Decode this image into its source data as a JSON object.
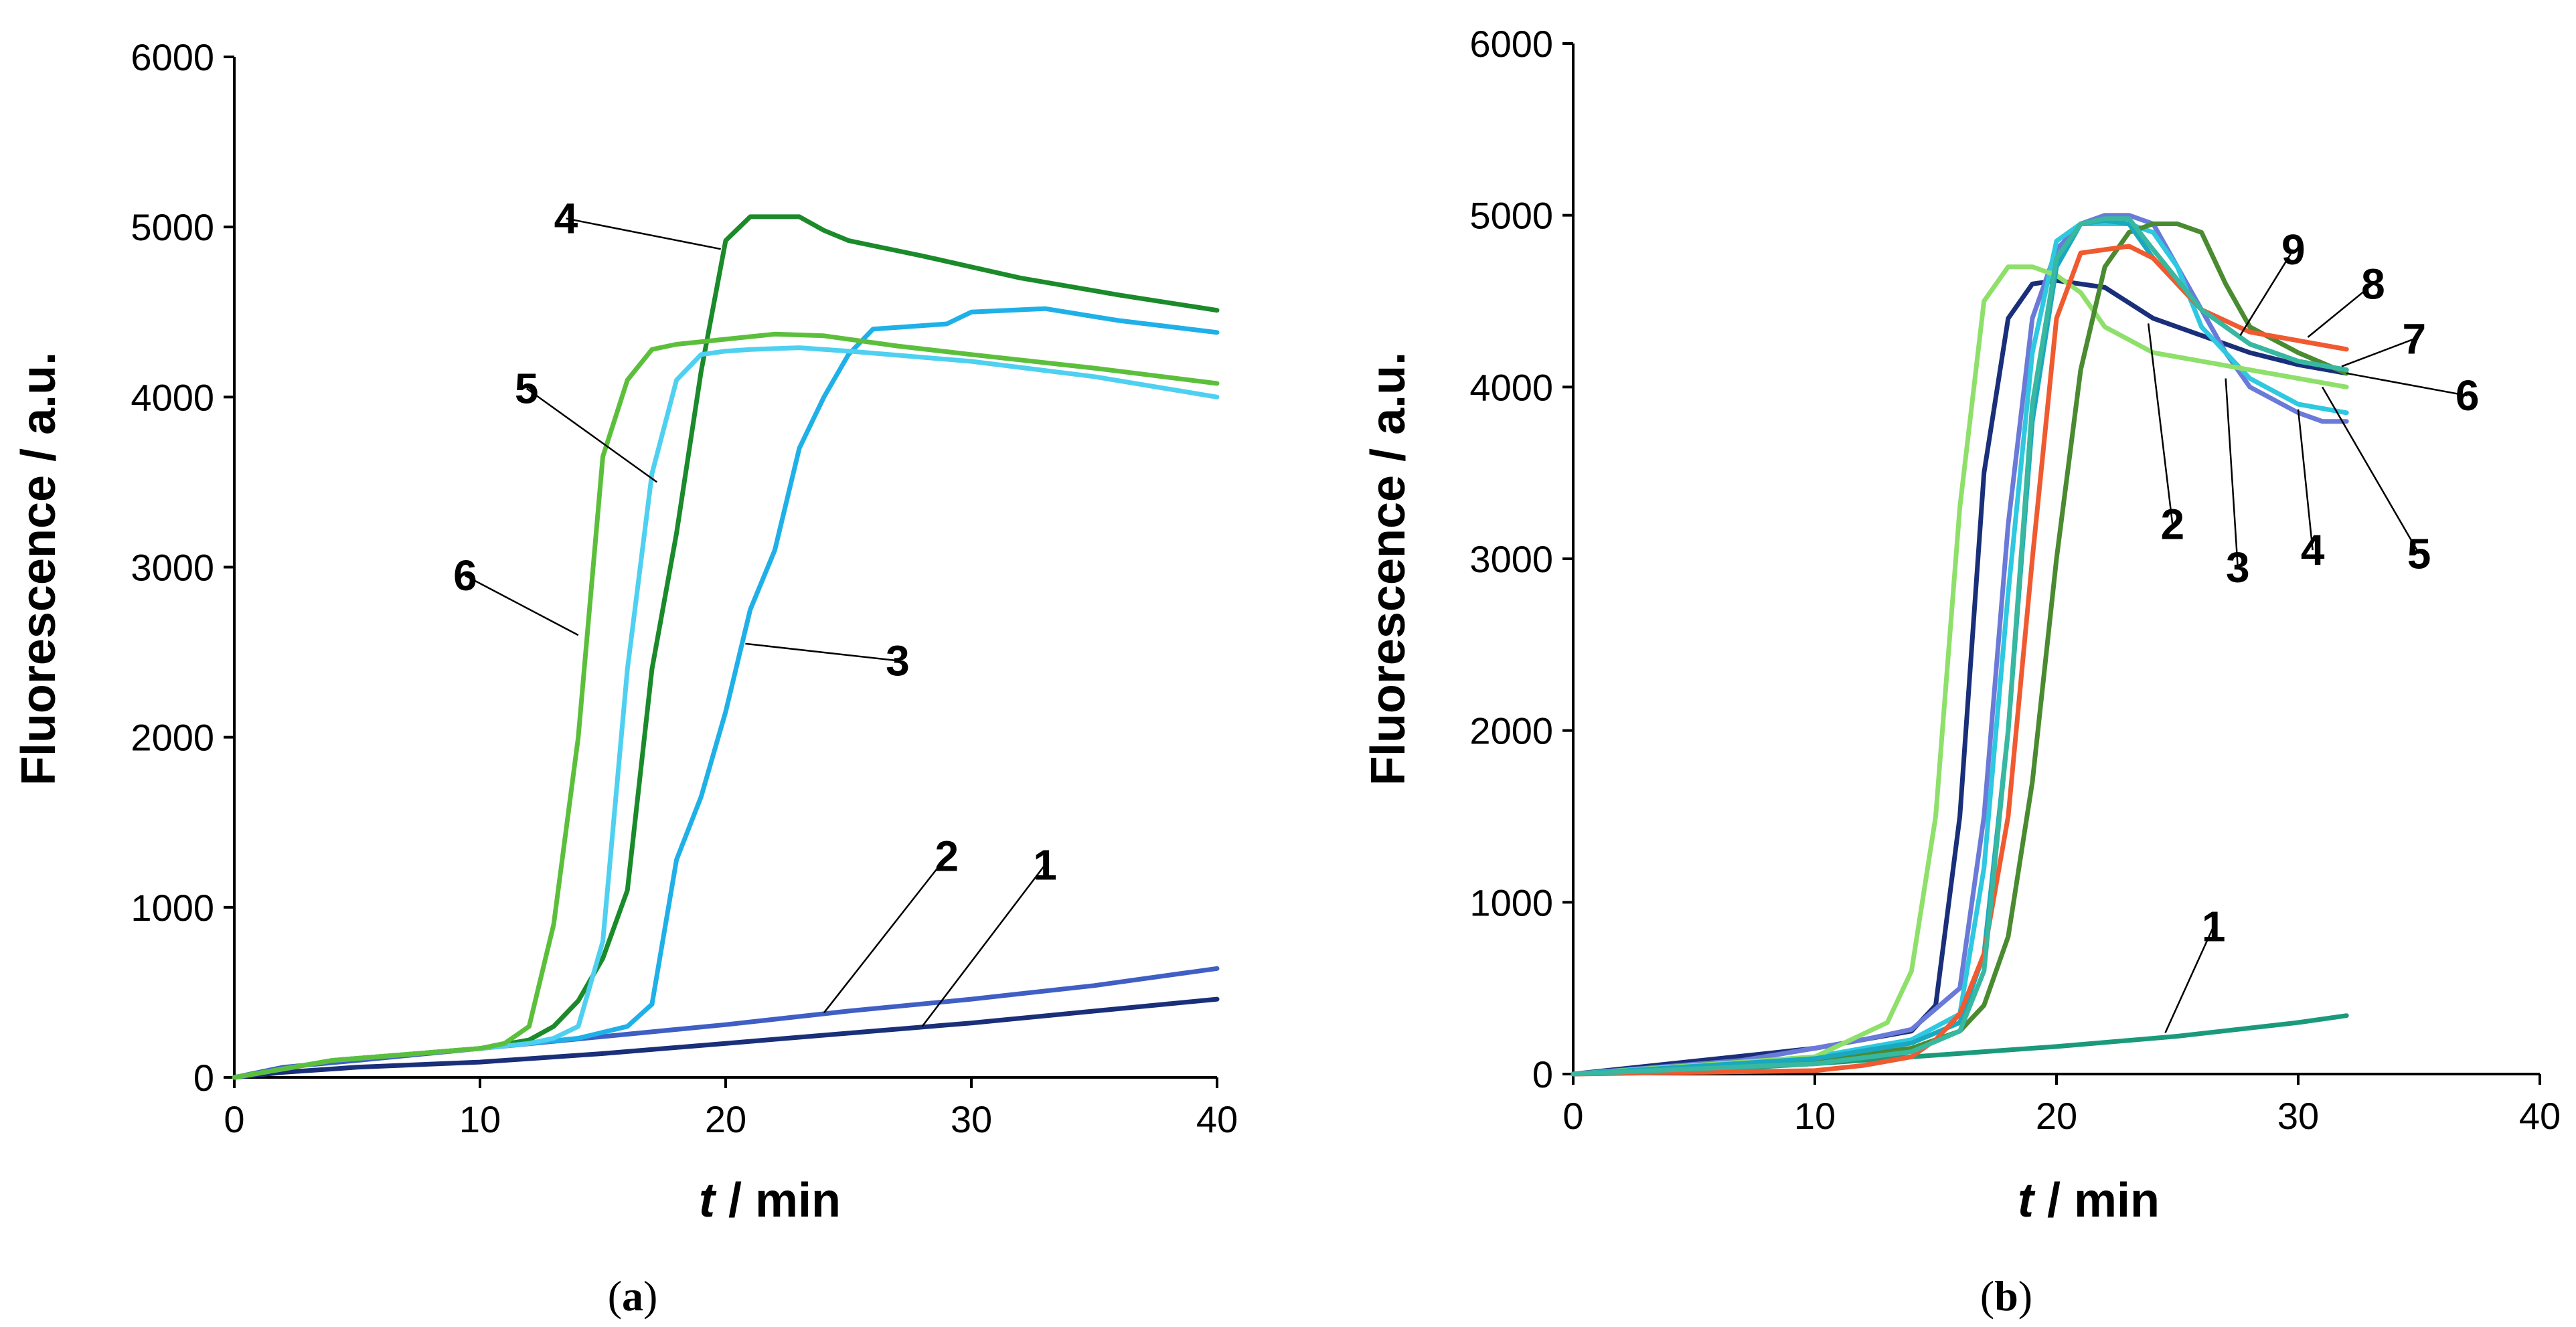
{
  "chart_data": [
    {
      "panel": "a",
      "type": "line",
      "title": "",
      "xlabel_italic": "t",
      "xlabel_rest": " / min",
      "ylabel": "Fluorescence / a.u.",
      "xlim": [
        0,
        40
      ],
      "ylim": [
        0,
        6000
      ],
      "xticks": [
        "0",
        "10",
        "20",
        "30",
        "40"
      ],
      "yticks": [
        "0",
        "1000",
        "2000",
        "3000",
        "4000",
        "5000",
        "6000"
      ],
      "grid": false,
      "panel_label_open": "(",
      "panel_label_letter": "a",
      "panel_label_close": ")",
      "series": [
        {
          "name": "1",
          "color": "#1a2f7a",
          "x": [
            0,
            2,
            5,
            10,
            15,
            20,
            25,
            30,
            35,
            40
          ],
          "y": [
            0,
            30,
            60,
            90,
            140,
            200,
            260,
            320,
            390,
            460
          ]
        },
        {
          "name": "2",
          "color": "#3f5fc4",
          "x": [
            0,
            2,
            5,
            10,
            15,
            20,
            25,
            30,
            35,
            40
          ],
          "y": [
            0,
            60,
            100,
            170,
            240,
            310,
            390,
            460,
            540,
            640
          ]
        },
        {
          "name": "3",
          "color": "#1fb0e8",
          "x": [
            0,
            4,
            10,
            14,
            16,
            17,
            18,
            19,
            20,
            21,
            22,
            23,
            24,
            25,
            26,
            28,
            29,
            30,
            33,
            36,
            40
          ],
          "y": [
            0,
            100,
            170,
            230,
            300,
            430,
            1280,
            1650,
            2150,
            2750,
            3100,
            3700,
            4000,
            4250,
            4400,
            4420,
            4430,
            4500,
            4520,
            4450,
            4380
          ]
        },
        {
          "name": "4",
          "color": "#1a8a2a",
          "x": [
            0,
            4,
            10,
            12,
            13,
            14,
            15,
            16,
            17,
            18,
            19,
            20,
            21,
            23,
            24,
            25,
            28,
            32,
            36,
            40
          ],
          "y": [
            0,
            100,
            170,
            220,
            300,
            450,
            700,
            1100,
            2400,
            3200,
            4150,
            4920,
            5060,
            5060,
            4980,
            4920,
            4830,
            4700,
            4600,
            4510
          ]
        },
        {
          "name": "5",
          "color": "#4fd0f0",
          "x": [
            0,
            4,
            10,
            12,
            13,
            14,
            15,
            16,
            17,
            18,
            19,
            20,
            21,
            23,
            25,
            30,
            35,
            40
          ],
          "y": [
            0,
            100,
            170,
            200,
            230,
            300,
            800,
            2400,
            3550,
            4100,
            4250,
            4270,
            4280,
            4290,
            4270,
            4210,
            4120,
            4000
          ]
        },
        {
          "name": "6",
          "color": "#5cbf3c",
          "x": [
            0,
            4,
            10,
            11,
            12,
            13,
            14,
            15,
            16,
            17,
            18,
            20,
            22,
            24,
            27,
            30,
            35,
            40
          ],
          "y": [
            0,
            100,
            170,
            200,
            300,
            900,
            2000,
            3650,
            4100,
            4280,
            4310,
            4340,
            4370,
            4360,
            4300,
            4250,
            4170,
            4080
          ]
        }
      ],
      "annotations": [
        {
          "label": "1",
          "text_x": 33,
          "text_y": 1250,
          "point_x": 28,
          "point_y": 300
        },
        {
          "label": "2",
          "text_x": 29,
          "text_y": 1300,
          "point_x": 24,
          "point_y": 380
        },
        {
          "label": "3",
          "text_x": 27,
          "text_y": 2450,
          "point_x": 20.8,
          "point_y": 2550
        },
        {
          "label": "4",
          "text_x": 13.5,
          "text_y": 5050,
          "point_x": 19.8,
          "point_y": 4870
        },
        {
          "label": "5",
          "text_x": 11.9,
          "text_y": 4050,
          "point_x": 17.2,
          "point_y": 3500
        },
        {
          "label": "6",
          "text_x": 9.4,
          "text_y": 2950,
          "point_x": 14.0,
          "point_y": 2600
        }
      ]
    },
    {
      "panel": "b",
      "type": "line",
      "title": "",
      "xlabel_italic": "t",
      "xlabel_rest": " / min",
      "ylabel": "Fluorescence / a.u.",
      "xlim": [
        0,
        40
      ],
      "ylim": [
        0,
        6000
      ],
      "xticks": [
        "0",
        "10",
        "20",
        "30",
        "40"
      ],
      "yticks": [
        "0",
        "1000",
        "2000",
        "3000",
        "4000",
        "5000",
        "6000"
      ],
      "grid": false,
      "panel_label_open": "(",
      "panel_label_letter": "b",
      "panel_label_close": ")",
      "series": [
        {
          "name": "1",
          "color": "#1a9a7a",
          "x": [
            0,
            5,
            10,
            15,
            20,
            25,
            30,
            32
          ],
          "y": [
            0,
            20,
            60,
            110,
            160,
            220,
            300,
            340
          ]
        },
        {
          "name": "2",
          "color": "#1a2f7a",
          "x": [
            0,
            10,
            14,
            15,
            16,
            17,
            18,
            19,
            20,
            22,
            24,
            26,
            28,
            30,
            32
          ],
          "y": [
            0,
            150,
            250,
            400,
            1500,
            3500,
            4400,
            4600,
            4620,
            4580,
            4400,
            4300,
            4200,
            4130,
            4080
          ]
        },
        {
          "name": "3",
          "color": "#6a7ad8",
          "x": [
            0,
            7,
            10,
            12,
            14,
            16,
            17,
            18,
            19,
            20,
            21,
            22,
            23,
            24,
            25,
            27,
            28,
            30,
            31,
            32
          ],
          "y": [
            0,
            80,
            150,
            200,
            260,
            500,
            1500,
            3200,
            4400,
            4800,
            4950,
            5000,
            5000,
            4950,
            4700,
            4200,
            4000,
            3850,
            3800,
            3800
          ]
        },
        {
          "name": "4",
          "color": "#2ec8e0",
          "x": [
            0,
            10,
            14,
            16,
            17,
            18,
            19,
            20,
            21,
            22,
            23,
            24,
            25,
            26,
            28,
            30,
            32
          ],
          "y": [
            0,
            100,
            200,
            350,
            1200,
            2800,
            4200,
            4850,
            4950,
            4950,
            4950,
            4900,
            4700,
            4350,
            4050,
            3900,
            3850
          ]
        },
        {
          "name": "5",
          "color": "#8ee06a",
          "x": [
            0,
            10,
            13,
            14,
            15,
            16,
            17,
            18,
            19,
            20,
            21,
            22,
            24,
            26,
            28,
            30,
            32
          ],
          "y": [
            0,
            100,
            300,
            600,
            1500,
            3300,
            4500,
            4700,
            4700,
            4650,
            4550,
            4350,
            4200,
            4150,
            4100,
            4050,
            4000
          ]
        },
        {
          "name": "6",
          "color": "#4a8a30",
          "x": [
            0,
            10,
            14,
            16,
            17,
            18,
            19,
            20,
            21,
            22,
            23,
            24,
            25,
            26,
            27,
            28,
            30,
            32
          ],
          "y": [
            0,
            80,
            150,
            250,
            400,
            800,
            1700,
            3000,
            4100,
            4700,
            4900,
            4950,
            4950,
            4900,
            4600,
            4350,
            4200,
            4080
          ]
        },
        {
          "name": "7",
          "color": "#1aa8c0",
          "x": [
            0,
            10,
            14,
            16,
            17,
            18,
            19,
            20,
            21,
            22,
            23,
            24,
            26,
            28,
            30,
            32
          ],
          "y": [
            0,
            90,
            180,
            300,
            700,
            2000,
            3800,
            4700,
            4950,
            4970,
            4950,
            4750,
            4450,
            4250,
            4150,
            4100
          ]
        },
        {
          "name": "8",
          "color": "#f05a30",
          "x": [
            0,
            10,
            12,
            14,
            15,
            16,
            17,
            18,
            19,
            20,
            21,
            22,
            23,
            24,
            26,
            28,
            30,
            32
          ],
          "y": [
            0,
            20,
            50,
            100,
            200,
            350,
            700,
            1500,
            3000,
            4400,
            4780,
            4800,
            4820,
            4750,
            4450,
            4320,
            4270,
            4220
          ]
        },
        {
          "name": "9",
          "color": "#38b8a0",
          "x": [
            0,
            10,
            14,
            16,
            17,
            18,
            19,
            20,
            21,
            22,
            23,
            24,
            26,
            28,
            30,
            32
          ],
          "y": [
            0,
            60,
            130,
            250,
            600,
            2000,
            3900,
            4750,
            4950,
            4980,
            4980,
            4800,
            4450,
            4250,
            4150,
            4100
          ]
        }
      ],
      "annotations": [
        {
          "label": "1",
          "text_x": 26.5,
          "text_y": 860,
          "point_x": 24.5,
          "point_y": 240
        },
        {
          "label": "2",
          "text_x": 24.8,
          "text_y": 3200,
          "point_x": 23.8,
          "point_y": 4370
        },
        {
          "label": "3",
          "text_x": 27.5,
          "text_y": 2950,
          "point_x": 27.0,
          "point_y": 4050
        },
        {
          "label": "4",
          "text_x": 30.6,
          "text_y": 3050,
          "point_x": 30.0,
          "point_y": 3870
        },
        {
          "label": "5",
          "text_x": 35.0,
          "text_y": 3030,
          "point_x": 31.0,
          "point_y": 4000
        },
        {
          "label": "6",
          "text_x": 37.0,
          "text_y": 3950,
          "point_x": 32.0,
          "point_y": 4080
        },
        {
          "label": "7",
          "text_x": 34.8,
          "text_y": 4280,
          "point_x": 31.8,
          "point_y": 4120
        },
        {
          "label": "8",
          "text_x": 33.1,
          "text_y": 4600,
          "point_x": 30.4,
          "point_y": 4290
        },
        {
          "label": "9",
          "text_x": 29.8,
          "text_y": 4800,
          "point_x": 27.6,
          "point_y": 4300
        }
      ]
    }
  ]
}
